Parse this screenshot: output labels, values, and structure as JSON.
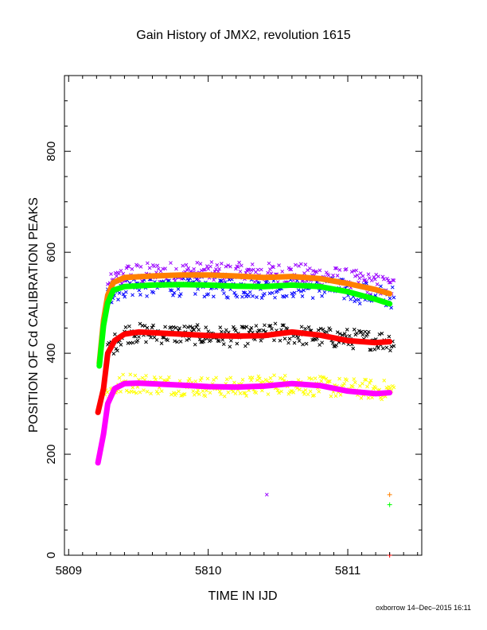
{
  "chart_data": {
    "type": "scatter",
    "title": "Gain History of JMX2, revolution 1615",
    "xlabel": "TIME IN IJD",
    "ylabel": "POSITION OF Cd CALIBRATION PEAKS",
    "xlim": [
      5808.97,
      5811.53
    ],
    "ylim": [
      0,
      950
    ],
    "x_ticks": [
      5809,
      5810,
      5811
    ],
    "y_ticks": [
      0,
      200,
      400,
      600,
      800
    ],
    "grid": false,
    "legend": "none",
    "footer": "oxborrow 14–Dec–2015 16:11",
    "series": [
      {
        "color": "#9900ff",
        "marker": "x",
        "kind": "scatter-band",
        "x_range": [
          5809.28,
          5811.33
        ],
        "trend": [
          [
            5809.28,
            530
          ],
          [
            5809.4,
            556
          ],
          [
            5809.8,
            560
          ],
          [
            5810.2,
            558
          ],
          [
            5810.6,
            557
          ],
          [
            5810.9,
            550
          ],
          [
            5811.33,
            530
          ]
        ],
        "spread": 22,
        "count": 260,
        "extra_points": [
          [
            5810.42,
            120
          ]
        ]
      },
      {
        "color": "#0000ff",
        "marker": "x",
        "kind": "scatter-band",
        "x_range": [
          5809.28,
          5811.33
        ],
        "trend": [
          [
            5809.28,
            515
          ],
          [
            5809.4,
            532
          ],
          [
            5809.8,
            535
          ],
          [
            5810.2,
            530
          ],
          [
            5810.6,
            532
          ],
          [
            5810.9,
            528
          ],
          [
            5811.33,
            510
          ]
        ],
        "spread": 22,
        "count": 220
      },
      {
        "color": "#000000",
        "marker": "x",
        "kind": "scatter-band",
        "x_range": [
          5809.28,
          5811.33
        ],
        "trend": [
          [
            5809.28,
            405
          ],
          [
            5809.4,
            440
          ],
          [
            5809.8,
            438
          ],
          [
            5810.2,
            432
          ],
          [
            5810.5,
            440
          ],
          [
            5810.8,
            432
          ],
          [
            5811.33,
            424
          ]
        ],
        "spread": 20,
        "count": 240
      },
      {
        "color": "#ffff00",
        "marker": "x",
        "kind": "scatter-band",
        "x_range": [
          5809.26,
          5811.33
        ],
        "trend": [
          [
            5809.26,
            318
          ],
          [
            5809.4,
            342
          ],
          [
            5809.8,
            336
          ],
          [
            5810.2,
            332
          ],
          [
            5810.5,
            340
          ],
          [
            5810.8,
            334
          ],
          [
            5811.33,
            326
          ]
        ],
        "spread": 20,
        "count": 240
      },
      {
        "color": "#ff8000",
        "marker": "line",
        "kind": "fit",
        "points": [
          [
            5809.22,
            380
          ],
          [
            5809.25,
            465
          ],
          [
            5809.28,
            515
          ],
          [
            5809.32,
            540
          ],
          [
            5809.4,
            550
          ],
          [
            5809.6,
            553
          ],
          [
            5809.8,
            555
          ],
          [
            5810.0,
            555
          ],
          [
            5810.2,
            553
          ],
          [
            5810.4,
            550
          ],
          [
            5810.6,
            552
          ],
          [
            5810.8,
            548
          ],
          [
            5811.0,
            538
          ],
          [
            5811.2,
            526
          ],
          [
            5811.3,
            518
          ]
        ],
        "extra_points": [
          [
            5811.3,
            120
          ]
        ]
      },
      {
        "color": "#00ff00",
        "marker": "line",
        "kind": "fit",
        "points": [
          [
            5809.22,
            375
          ],
          [
            5809.25,
            455
          ],
          [
            5809.28,
            500
          ],
          [
            5809.32,
            525
          ],
          [
            5809.4,
            532
          ],
          [
            5809.6,
            535
          ],
          [
            5809.8,
            536
          ],
          [
            5810.0,
            535
          ],
          [
            5810.2,
            533
          ],
          [
            5810.4,
            532
          ],
          [
            5810.6,
            535
          ],
          [
            5810.8,
            532
          ],
          [
            5811.0,
            522
          ],
          [
            5811.2,
            507
          ],
          [
            5811.3,
            498
          ]
        ],
        "extra_points": [
          [
            5811.3,
            100
          ]
        ]
      },
      {
        "color": "#ff0000",
        "marker": "line",
        "kind": "fit",
        "points": [
          [
            5809.21,
            283
          ],
          [
            5809.25,
            330
          ],
          [
            5809.28,
            400
          ],
          [
            5809.33,
            425
          ],
          [
            5809.4,
            438
          ],
          [
            5809.5,
            442
          ],
          [
            5809.8,
            438
          ],
          [
            5810.0,
            435
          ],
          [
            5810.2,
            434
          ],
          [
            5810.4,
            435
          ],
          [
            5810.6,
            442
          ],
          [
            5810.8,
            436
          ],
          [
            5811.0,
            425
          ],
          [
            5811.2,
            421
          ],
          [
            5811.3,
            423
          ]
        ],
        "extra_points": [
          [
            5811.3,
            0
          ]
        ]
      },
      {
        "color": "#ff00ff",
        "marker": "line",
        "kind": "fit",
        "points": [
          [
            5809.21,
            183
          ],
          [
            5809.25,
            240
          ],
          [
            5809.28,
            300
          ],
          [
            5809.33,
            330
          ],
          [
            5809.4,
            340
          ],
          [
            5809.5,
            341
          ],
          [
            5809.8,
            337
          ],
          [
            5810.0,
            334
          ],
          [
            5810.2,
            333
          ],
          [
            5810.4,
            335
          ],
          [
            5810.6,
            340
          ],
          [
            5810.8,
            336
          ],
          [
            5811.0,
            325
          ],
          [
            5811.2,
            320
          ],
          [
            5811.3,
            322
          ]
        ]
      }
    ]
  }
}
